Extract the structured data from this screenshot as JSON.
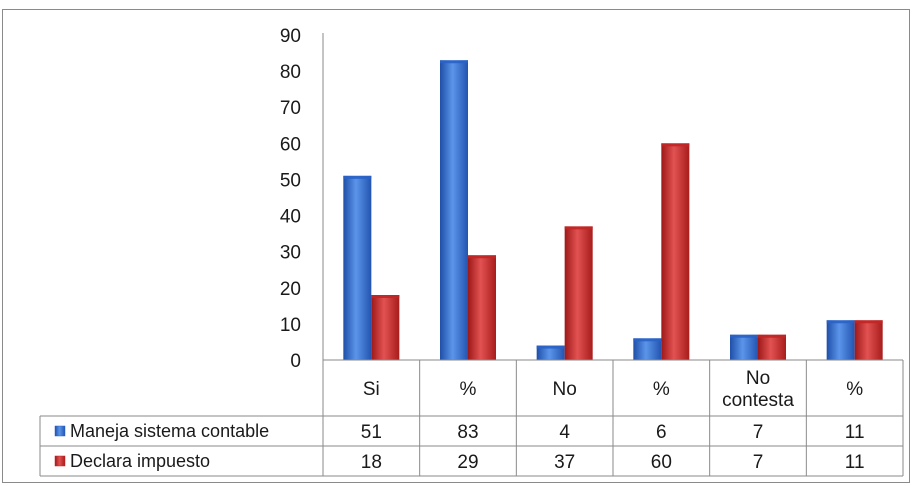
{
  "chart_data": {
    "type": "bar",
    "categories": [
      "Si",
      "%",
      "No",
      "%",
      "No contesta",
      "%"
    ],
    "category_lines": [
      [
        "Si"
      ],
      [
        "%"
      ],
      [
        "No"
      ],
      [
        "%"
      ],
      [
        "No",
        "contesta"
      ],
      [
        "%"
      ]
    ],
    "series": [
      {
        "name": "Maneja sistema contable",
        "values": [
          51,
          83,
          4,
          6,
          7,
          11
        ],
        "color": "#3b78d8"
      },
      {
        "name": "Declara impuesto",
        "values": [
          18,
          29,
          37,
          60,
          7,
          11
        ],
        "color": "#d42f2f"
      }
    ],
    "table": [
      [
        "51",
        "83",
        "4",
        "6",
        "7",
        "11"
      ],
      [
        "18",
        "29",
        "37",
        "60",
        "7",
        "11"
      ]
    ],
    "yticks": [
      "0",
      "10",
      "20",
      "30",
      "40",
      "50",
      "60",
      "70",
      "80",
      "90"
    ],
    "ylim": [
      0,
      90
    ],
    "grid": false,
    "legend": "data-table"
  }
}
